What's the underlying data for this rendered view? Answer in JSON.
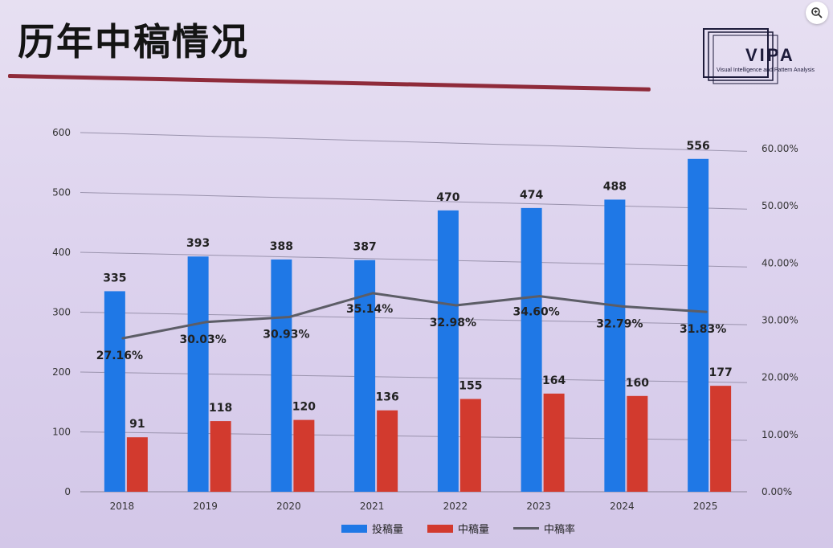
{
  "slide": {
    "title": "历年中稿情况",
    "logo_text": "VIPA",
    "logo_subtitle": "Visual Intelligence and Pattern Analysis",
    "zoom_icon": "zoom-in-icon"
  },
  "colors": {
    "submissions": "#1f78e6",
    "accepted": "#d23a2e",
    "rate": "#5c5d66",
    "title_rule": "#8f2b3a"
  },
  "chart_data": {
    "type": "bar",
    "title": "",
    "categories": [
      "2018",
      "2019",
      "2020",
      "2021",
      "2022",
      "2023",
      "2024",
      "2025"
    ],
    "series": [
      {
        "name": "投稿量",
        "kind": "bar",
        "axis": "left",
        "values": [
          335,
          393,
          388,
          387,
          470,
          474,
          488,
          556
        ]
      },
      {
        "name": "中稿量",
        "kind": "bar",
        "axis": "left",
        "values": [
          91,
          118,
          120,
          136,
          155,
          164,
          160,
          177
        ]
      },
      {
        "name": "中稿率",
        "kind": "line",
        "axis": "right",
        "values": [
          27.16,
          30.03,
          30.93,
          35.14,
          32.98,
          34.6,
          32.79,
          31.83
        ],
        "labels": [
          "27.16%",
          "30.03%",
          "30.93%",
          "35.14%",
          "32.98%",
          "34.60%",
          "32.79%",
          "31.83%"
        ]
      }
    ],
    "y_left": {
      "ticks": [
        "0",
        "100",
        "200",
        "300",
        "400",
        "500",
        "600"
      ],
      "min": 0,
      "max": 600
    },
    "y_right": {
      "ticks": [
        "0.00%",
        "10.00%",
        "20.00%",
        "30.00%",
        "40.00%",
        "50.00%",
        "60.00%"
      ],
      "min": 0,
      "max": 60
    },
    "grid": true,
    "legend_position": "bottom"
  }
}
